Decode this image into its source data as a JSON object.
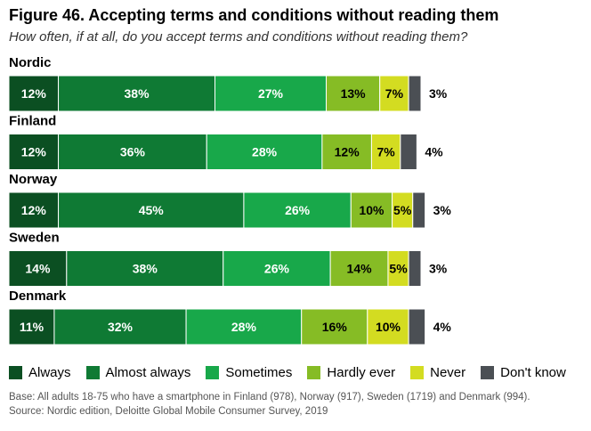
{
  "chart_data": {
    "type": "bar",
    "orientation": "horizontal-stacked-100",
    "title": "Figure 46. Accepting terms and conditions without reading them",
    "subtitle": "How often, if at all, do you accept terms and conditions without reading them?",
    "categories": [
      "Nordic",
      "Finland",
      "Norway",
      "Sweden",
      "Denmark"
    ],
    "series": [
      {
        "name": "Always",
        "color": "#0b4f22",
        "text_color": "#ffffff",
        "values": [
          12,
          12,
          12,
          14,
          11
        ]
      },
      {
        "name": "Almost always",
        "color": "#0f7a34",
        "text_color": "#ffffff",
        "values": [
          38,
          36,
          45,
          38,
          32
        ]
      },
      {
        "name": "Sometimes",
        "color": "#18a84a",
        "text_color": "#ffffff",
        "values": [
          27,
          28,
          26,
          26,
          28
        ]
      },
      {
        "name": "Hardly ever",
        "color": "#86bc25",
        "text_color": "#000000",
        "values": [
          13,
          12,
          10,
          14,
          16
        ]
      },
      {
        "name": "Never",
        "color": "#d3dc21",
        "text_color": "#000000",
        "values": [
          7,
          7,
          5,
          5,
          10
        ]
      },
      {
        "name": "Don't know",
        "color": "#4b4f54",
        "text_color": "#000000",
        "values": [
          3,
          4,
          3,
          3,
          4
        ]
      }
    ],
    "value_suffix": "%",
    "xlim": [
      0,
      100
    ]
  },
  "footnotes": {
    "base": "Base: All adults 18-75 who have a smartphone in Finland (978), Norway (917), Sweden (1719) and Denmark (994).",
    "source": "Source: Nordic edition, Deloitte Global Mobile Consumer Survey, 2019"
  }
}
